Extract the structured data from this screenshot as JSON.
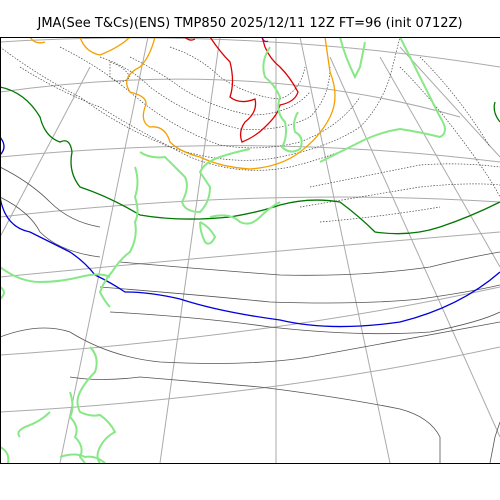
{
  "header": {
    "title": "JMA(See T&Cs)(ENS) TMP850 2025/12/11 12Z FT=96 (init 0712Z)"
  },
  "map": {
    "colors": {
      "graticule": "#aaaaaa",
      "isotherm_thin": "#555555",
      "isotherm_dotted": "#444444",
      "isotherm_blue": "#0000dd",
      "isotherm_green": "#007700",
      "isotherm_orange": "#f5a000",
      "isotherm_red": "#dd0000",
      "isotherm_purple": "#880088",
      "coastline": "#88e888"
    }
  }
}
